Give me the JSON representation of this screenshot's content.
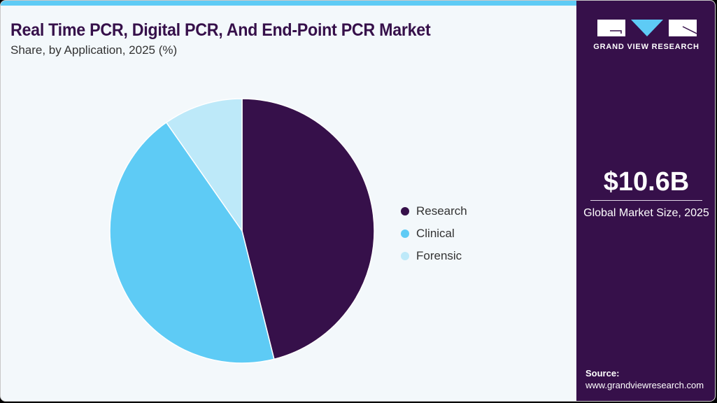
{
  "header": {
    "title": "Real Time PCR, Digital PCR, And End-Point PCR Market",
    "subtitle": "Share, by Application, 2025 (%)"
  },
  "legend": {
    "items": [
      {
        "label": "Research",
        "color": "#36104a"
      },
      {
        "label": "Clinical",
        "color": "#5ecbf5"
      },
      {
        "label": "Forensic",
        "color": "#bde9f9"
      }
    ]
  },
  "sidebar": {
    "logo_text": "GRAND VIEW RESEARCH",
    "market_size": "$10.6B",
    "market_size_label": "Global Market Size, 2025",
    "source_label": "Source:",
    "source_url": "www.grandviewresearch.com"
  },
  "colors": {
    "accent": "#5ecbf5",
    "brand": "#36104a",
    "background": "#f3f8fb"
  },
  "chart_data": {
    "type": "pie",
    "title": "Real Time PCR, Digital PCR, And End-Point PCR Market",
    "subtitle": "Share, by Application, 2025 (%)",
    "categories": [
      "Research",
      "Clinical",
      "Forensic"
    ],
    "values": [
      46.1,
      44.2,
      9.7
    ],
    "colors": [
      "#36104a",
      "#5ecbf5",
      "#bde9f9"
    ],
    "legend_position": "right",
    "start_angle": "top, clockwise"
  }
}
